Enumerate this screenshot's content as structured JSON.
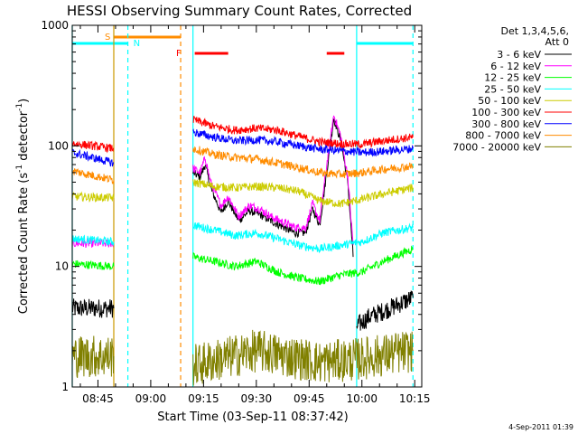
{
  "chart_data": {
    "type": "line",
    "title": "HESSI Observing Summary Count Rates, Corrected",
    "xlabel": "Start Time (03-Sep-11 08:37:42)",
    "ylabel_main": "Corrected Count Rate (s",
    "ylabel_sup1": "-1",
    "ylabel_mid": " detector",
    "ylabel_sup2": "-1",
    "ylabel_end": ")",
    "y_scale": "log",
    "ylim": [
      1,
      1000
    ],
    "xlim": [
      "08:37:42",
      "10:17:00"
    ],
    "x_ticks": [
      "08:45",
      "09:00",
      "09:15",
      "09:30",
      "09:45",
      "10:00",
      "10:15"
    ],
    "y_ticks": [
      "1",
      "10",
      "100",
      "1000"
    ],
    "legend_title_1": "Det 1,3,4,5,6,",
    "legend_title_2": "Att 0",
    "timestamp": "4-Sep-2011 01:39",
    "series": [
      {
        "name": "3 - 6 keV",
        "color": "#000000",
        "segments": [
          [
            [
              "08:37:42",
              4.5
            ],
            [
              "08:49:30",
              4.5
            ]
          ],
          [
            [
              "09:12:00",
              60
            ],
            [
              "09:14:00",
              55
            ],
            [
              "09:15:30",
              70
            ],
            [
              "09:17:00",
              45
            ],
            [
              "09:20:00",
              28
            ],
            [
              "09:22:00",
              35
            ],
            [
              "09:25:00",
              24
            ],
            [
              "09:28:00",
              29
            ],
            [
              "09:31:00",
              27
            ],
            [
              "09:34:00",
              24
            ],
            [
              "09:38:00",
              21
            ],
            [
              "09:41:00",
              19
            ],
            [
              "09:44:00",
              19
            ],
            [
              "09:46:00",
              30
            ],
            [
              "09:48:00",
              22
            ],
            [
              "09:50:00",
              60
            ],
            [
              "09:52:00",
              170
            ],
            [
              "09:54:00",
              110
            ],
            [
              "09:56:00",
              50
            ],
            [
              "09:57:30",
              12
            ]
          ],
          [
            [
              "09:58:30",
              3.2
            ],
            [
              "10:02:00",
              3.8
            ],
            [
              "10:08:00",
              4.5
            ],
            [
              "10:14:30",
              5.5
            ]
          ]
        ]
      },
      {
        "name": "6 - 12 keV",
        "color": "#ff00ff",
        "segments": [
          [
            [
              "08:37:42",
              15.5
            ],
            [
              "08:49:30",
              15.5
            ]
          ],
          [
            [
              "09:12:00",
              65
            ],
            [
              "09:14:00",
              60
            ],
            [
              "09:15:30",
              80
            ],
            [
              "09:17:00",
              50
            ],
            [
              "09:20:00",
              32
            ],
            [
              "09:22:00",
              38
            ],
            [
              "09:25:00",
              26
            ],
            [
              "09:28:00",
              32
            ],
            [
              "09:31:00",
              30
            ],
            [
              "09:34:00",
              26
            ],
            [
              "09:38:00",
              23
            ],
            [
              "09:41:00",
              21
            ],
            [
              "09:44:00",
              21
            ],
            [
              "09:46:00",
              33
            ],
            [
              "09:48:00",
              24
            ],
            [
              "09:50:00",
              70
            ],
            [
              "09:52:00",
              180
            ],
            [
              "09:54:00",
              120
            ],
            [
              "09:56:00",
              55
            ],
            [
              "09:57:30",
              15
            ]
          ]
        ]
      },
      {
        "name": "12 - 25 keV",
        "color": "#00ff00",
        "segments": [
          [
            [
              "08:37:42",
              10.5
            ],
            [
              "08:49:30",
              10
            ]
          ],
          [
            [
              "09:12:00",
              12
            ],
            [
              "09:18:00",
              11
            ],
            [
              "09:24:00",
              10
            ],
            [
              "09:30:00",
              11
            ],
            [
              "09:36:00",
              9
            ],
            [
              "09:42:00",
              8
            ],
            [
              "09:48:00",
              7.5
            ],
            [
              "09:54:00",
              8.5
            ],
            [
              "10:00:00",
              9
            ],
            [
              "10:06:00",
              11
            ],
            [
              "10:14:30",
              14
            ]
          ]
        ]
      },
      {
        "name": "25 - 50 keV",
        "color": "#00ffff",
        "segments": [
          [
            [
              "08:37:42",
              17
            ],
            [
              "08:49:30",
              16
            ]
          ],
          [
            [
              "09:12:00",
              22
            ],
            [
              "09:18:00",
              20
            ],
            [
              "09:24:00",
              18
            ],
            [
              "09:30:00",
              19
            ],
            [
              "09:36:00",
              17
            ],
            [
              "09:42:00",
              15
            ],
            [
              "09:48:00",
              14
            ],
            [
              "09:54:00",
              15
            ],
            [
              "10:00:00",
              16
            ],
            [
              "10:06:00",
              19
            ],
            [
              "10:14:30",
              21
            ]
          ]
        ]
      },
      {
        "name": "50 - 100 keV",
        "color": "#cccc00",
        "segments": [
          [
            [
              "08:37:42",
              38
            ],
            [
              "08:49:30",
              37
            ]
          ],
          [
            [
              "09:12:00",
              50
            ],
            [
              "09:18:00",
              46
            ],
            [
              "09:24:00",
              45
            ],
            [
              "09:30:00",
              46
            ],
            [
              "09:36:00",
              45
            ],
            [
              "09:42:00",
              42
            ],
            [
              "09:48:00",
              35
            ],
            [
              "09:54:00",
              33
            ],
            [
              "10:00:00",
              36
            ],
            [
              "10:06:00",
              40
            ],
            [
              "10:14:30",
              45
            ]
          ]
        ]
      },
      {
        "name": "100 - 300 keV",
        "color": "#ff0000",
        "segments": [
          [
            [
              "08:37:42",
              105
            ],
            [
              "08:49:30",
              95
            ]
          ],
          [
            [
              "09:12:00",
              165
            ],
            [
              "09:18:00",
              145
            ],
            [
              "09:24:00",
              135
            ],
            [
              "09:30:00",
              140
            ],
            [
              "09:36:00",
              135
            ],
            [
              "09:42:00",
              120
            ],
            [
              "09:48:00",
              108
            ],
            [
              "09:54:00",
              104
            ],
            [
              "10:00:00",
              103
            ],
            [
              "10:06:00",
              110
            ],
            [
              "10:14:30",
              118
            ]
          ]
        ]
      },
      {
        "name": "300 - 800 keV",
        "color": "#0000ff",
        "segments": [
          [
            [
              "08:37:42",
              88
            ],
            [
              "08:49:30",
              72
            ]
          ],
          [
            [
              "09:12:00",
              130
            ],
            [
              "09:18:00",
              118
            ],
            [
              "09:24:00",
              110
            ],
            [
              "09:30:00",
              112
            ],
            [
              "09:36:00",
              108
            ],
            [
              "09:42:00",
              100
            ],
            [
              "09:48:00",
              94
            ],
            [
              "09:54:00",
              91
            ],
            [
              "10:00:00",
              88
            ],
            [
              "10:06:00",
              90
            ],
            [
              "10:14:30",
              95
            ]
          ]
        ]
      },
      {
        "name": "800 - 7000 keV",
        "color": "#ff8c00",
        "segments": [
          [
            [
              "08:37:42",
              62
            ],
            [
              "08:49:30",
              52
            ]
          ],
          [
            [
              "09:12:00",
              95
            ],
            [
              "09:18:00",
              85
            ],
            [
              "09:24:00",
              80
            ],
            [
              "09:30:00",
              78
            ],
            [
              "09:36:00",
              72
            ],
            [
              "09:42:00",
              66
            ],
            [
              "09:48:00",
              60
            ],
            [
              "09:54:00",
              58
            ],
            [
              "10:00:00",
              60
            ],
            [
              "10:06:00",
              64
            ],
            [
              "10:14:30",
              68
            ]
          ]
        ]
      },
      {
        "name": "7000 - 20000 keV",
        "color": "#808000",
        "segments": [
          [
            [
              "08:37:42",
              1.8
            ],
            [
              "08:49:30",
              1.8
            ]
          ],
          [
            [
              "09:12:00",
              1.5
            ],
            [
              "09:30:00",
              2.0
            ],
            [
              "09:48:00",
              1.6
            ],
            [
              "09:58:30",
              1.7
            ],
            [
              "10:14:30",
              2.0
            ]
          ]
        ]
      }
    ],
    "annotations": {
      "saa_label": "S",
      "night_label": "N",
      "flare_label": "F"
    },
    "bars": {
      "saa": [
        [
          "08:49:30",
          "09:08:30"
        ]
      ],
      "night": [
        [
          "08:37:42",
          "08:53:30"
        ],
        [
          "09:58:30",
          "10:14:30"
        ]
      ],
      "flare": [
        [
          "09:12:30",
          "09:22:00"
        ],
        [
          "09:50:00",
          "09:55:00"
        ]
      ]
    },
    "vlines": [
      {
        "t": "08:37:42",
        "color": "#00ffff",
        "dash": false
      },
      {
        "t": "08:49:30",
        "color": "#cc9900",
        "dash": false
      },
      {
        "t": "08:53:30",
        "color": "#00ffff",
        "dash": true
      },
      {
        "t": "09:08:30",
        "color": "#ff8c00",
        "dash": true
      },
      {
        "t": "09:12:00",
        "color": "#00ffff",
        "dash": false
      },
      {
        "t": "09:58:30",
        "color": "#00ffff",
        "dash": false
      },
      {
        "t": "10:14:30",
        "color": "#00ffff",
        "dash": true
      }
    ]
  }
}
